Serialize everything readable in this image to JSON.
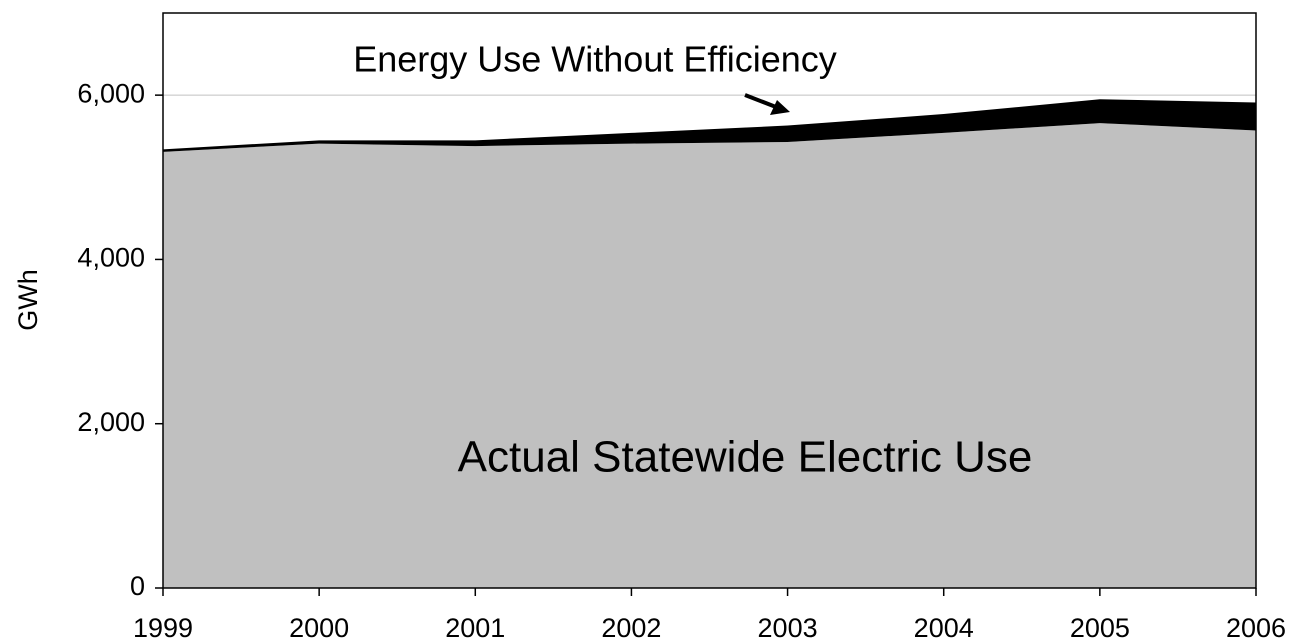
{
  "chart_data": {
    "type": "stacked_area",
    "y_label": "GWh",
    "x": [
      1999,
      2000,
      2001,
      2002,
      2003,
      2004,
      2005,
      2006
    ],
    "xlim": [
      1999,
      2006
    ],
    "xticks": [
      1999,
      2000,
      2001,
      2002,
      2003,
      2004,
      2005,
      2006
    ],
    "ylim": [
      0,
      7000
    ],
    "yticks": [
      0,
      {
        "value": 2000,
        "label": "2,000"
      },
      {
        "value": 4000,
        "label": "4,000"
      },
      {
        "value": 6000,
        "label": "6,000"
      }
    ],
    "grid": true,
    "series": [
      {
        "name": "Actual Statewide Electric Use",
        "color": "#c0c0c0",
        "values": [
          5310,
          5410,
          5380,
          5410,
          5430,
          5540,
          5660,
          5570
        ]
      },
      {
        "name": "Energy Use Without Efficiency",
        "color": "#000000",
        "values": [
          30,
          40,
          70,
          130,
          200,
          230,
          290,
          340
        ]
      }
    ]
  }
}
